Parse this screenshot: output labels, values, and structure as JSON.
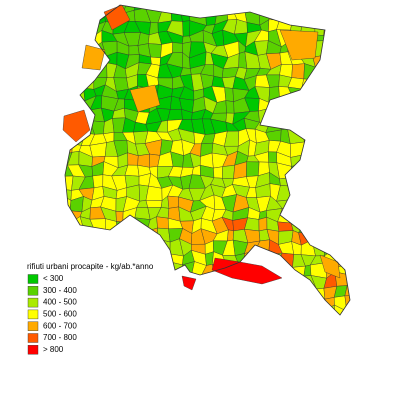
{
  "legend": {
    "title": "rifiuti urbani procapite - kg/ab.*anno",
    "items": [
      {
        "label": "< 300",
        "color": "#00c800"
      },
      {
        "label": "300 - 400",
        "color": "#5ad200"
      },
      {
        "label": "400 - 500",
        "color": "#aaeb00"
      },
      {
        "label": "500 - 600",
        "color": "#ffff00"
      },
      {
        "label": "600 - 700",
        "color": "#ffaa00"
      },
      {
        "label": "700 - 800",
        "color": "#ff5a00"
      },
      {
        "label": "> 800",
        "color": "#ff0000"
      }
    ]
  }
}
